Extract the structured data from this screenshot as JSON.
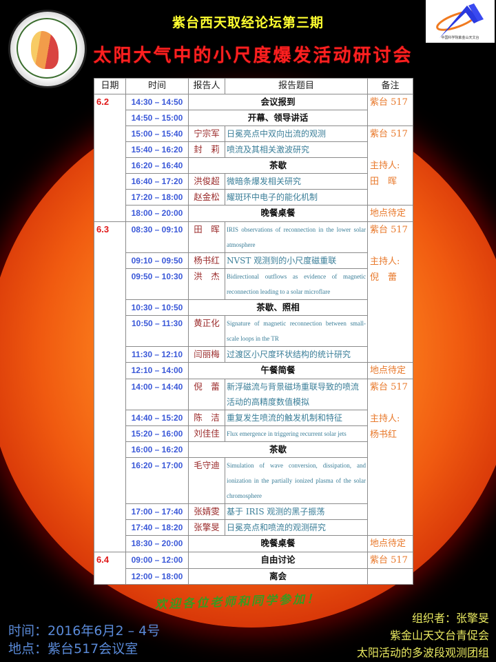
{
  "header": {
    "series": "紫台西天取经论坛第三期",
    "title": "太阳大气中的小尺度爆发活动研讨会",
    "logo_left_text": "中国科学院青年创新促进会 Youth Innovation Promotion Association CAS",
    "logo_right_text": "中国科学院紫金山天文台"
  },
  "table": {
    "columns": [
      "日期",
      "时间",
      "报告人",
      "报告题目",
      "备注"
    ],
    "rows": [
      {
        "date": "6.2",
        "time": "14:30 – 14:50",
        "event": "会议报到"
      },
      {
        "time": "14:50 – 15:00",
        "event": "开幕、领导讲话"
      },
      {
        "time": "15:00 – 15:40",
        "speaker": "宁宗军",
        "title": "日冕亮点中双向出流的观测"
      },
      {
        "time": "15:40 – 16:20",
        "speaker": "封　莉",
        "title": "喷流及其相关激波研究"
      },
      {
        "time": "16:20 – 16:40",
        "event": "茶歇"
      },
      {
        "time": "16:40 – 17:20",
        "speaker": "洪俊超",
        "title": "微暗条爆发相关研究"
      },
      {
        "time": "17:20 – 18:00",
        "speaker": "赵金松",
        "title": "耀斑环中电子的能化机制"
      },
      {
        "time": "18:00 – 20:00",
        "event": "晚餐桌餐"
      },
      {
        "date": "6.3",
        "time": "08:30 – 09:10",
        "speaker": "田　晖",
        "title": "IRIS observations of reconnection in the lower solar atmosphere"
      },
      {
        "time": "09:10 – 09:50",
        "speaker": "杨书红",
        "title": "NVST 观测到的小尺度磁重联"
      },
      {
        "time": "09:50 – 10:30",
        "speaker": "洪　杰",
        "title": "Bidirectional outflows as evidence of magnetic reconnection leading to a solar microflare"
      },
      {
        "time": "10:30 – 10:50",
        "event": "茶歇、照相"
      },
      {
        "time": "10:50 – 11:30",
        "speaker": "黄正化",
        "title": "Signature of magnetic reconnection between small-scale loops in the TR"
      },
      {
        "time": "11:30 – 12:10",
        "speaker": "闫丽梅",
        "title": "过渡区小尺度环状结构的统计研究"
      },
      {
        "time": "12:10 – 14:00",
        "event": "午餐简餐"
      },
      {
        "time": "14:00 – 14:40",
        "speaker": "倪　蕾",
        "title": "新浮磁流与背景磁场重联导致的喷流活动的高精度数值模拟"
      },
      {
        "time": "14:40 – 15:20",
        "speaker": "陈　洁",
        "title": "重复发生喷流的触发机制和特征"
      },
      {
        "time": "15:20 – 16:00",
        "speaker": "刘佳佳",
        "title": "Flux emergence in triggering recurrent solar jets"
      },
      {
        "time": "16:00 – 16:20",
        "event": "茶歇"
      },
      {
        "time": "16:20 – 17:00",
        "speaker": "毛守迪",
        "title": "Simulation of wave conversion, dissipation, and ionization in the partially ionized plasma of the solar chromosphere"
      },
      {
        "time": "17:00 – 17:40",
        "speaker": "张婧雯",
        "title": "基于 IRIS 观测的黑子振荡"
      },
      {
        "time": "17:40 – 18:20",
        "speaker": "张擎旻",
        "title": "日冕亮点和喷流的观测研究"
      },
      {
        "time": "18:30 – 20:00",
        "event": "晚餐桌餐"
      },
      {
        "date": "6.4",
        "time": "09:00 – 12:00",
        "event": "自由讨论"
      },
      {
        "time": "12:00 – 18:00",
        "event": "离会"
      }
    ],
    "notes": [
      {
        "start": 0,
        "span": 2,
        "text": "紫台 517"
      },
      {
        "start": 2,
        "span": 5,
        "text": "紫台 517\n\n主持人:\n田　晖"
      },
      {
        "start": 7,
        "span": 1,
        "text": "地点待定"
      },
      {
        "start": 8,
        "span": 6,
        "text": "紫台 517\n\n主持人:\n倪　蕾"
      },
      {
        "start": 14,
        "span": 1,
        "text": "地点待定"
      },
      {
        "start": 15,
        "span": 7,
        "text": "紫台 517\n\n主持人:\n杨书红"
      },
      {
        "start": 22,
        "span": 1,
        "text": "地点待定"
      },
      {
        "start": 23,
        "span": 1,
        "text": "紫台 517"
      },
      {
        "start": 24,
        "span": 1,
        "text": ""
      }
    ],
    "date_spans": [
      {
        "start": 0,
        "span": 8
      },
      {
        "start": 8,
        "span": 15
      },
      {
        "start": 23,
        "span": 2
      }
    ]
  },
  "footer": {
    "welcome": "欢迎各位老师和同学参加！",
    "time": "时间：2016年6月2 – 4号",
    "place": "地点：紫台517会议室",
    "organizer": "组织者：张擎旻",
    "org1": "紫金山天文台青促会",
    "org2": "太阳活动的多波段观测团组"
  },
  "colors": {
    "date": "#e01818",
    "time": "#3a58d8",
    "speaker": "#9a2a2a",
    "title": "#3a7e98",
    "note": "#e8782a",
    "series": "#ffff30",
    "main_title": "#ff2020"
  }
}
